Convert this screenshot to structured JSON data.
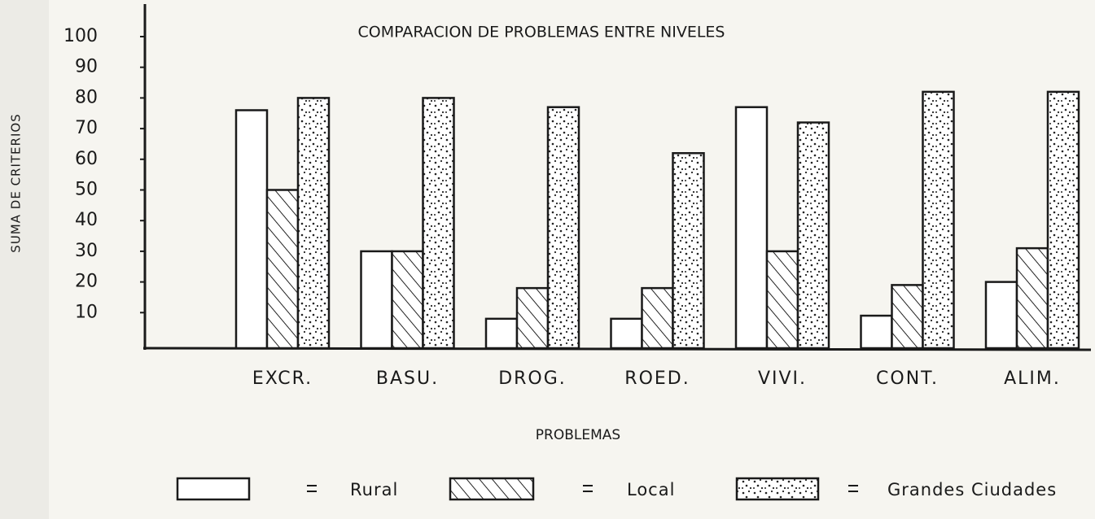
{
  "chart_data": {
    "type": "bar",
    "title": "COMPARACION DE PROBLEMAS ENTRE NIVELES",
    "x_label": "PROBLEMAS",
    "y_label": "SUMA DE CRITERIOS",
    "categories": [
      "EXCR.",
      "BASU.",
      "DROG.",
      "ROED.",
      "VIVI.",
      "CONT.",
      "ALIM."
    ],
    "series": [
      {
        "name": "Rural",
        "color": "#ffffff",
        "pattern": "none",
        "values": [
          76,
          30,
          8,
          8,
          77,
          9,
          20
        ]
      },
      {
        "name": "Local",
        "color": "#ffffff",
        "pattern": "hatch",
        "values": [
          50,
          30,
          18,
          18,
          30,
          19,
          31
        ]
      },
      {
        "name": "Grandes Ciudades",
        "color": "#ffffff",
        "pattern": "dots",
        "values": [
          80,
          80,
          77,
          62,
          72,
          82,
          82
        ]
      }
    ],
    "ylim": [
      0,
      100
    ],
    "yticks": [
      10,
      20,
      30,
      40,
      50,
      60,
      70,
      80,
      90,
      100
    ],
    "grid": false,
    "legend": "bottom"
  }
}
